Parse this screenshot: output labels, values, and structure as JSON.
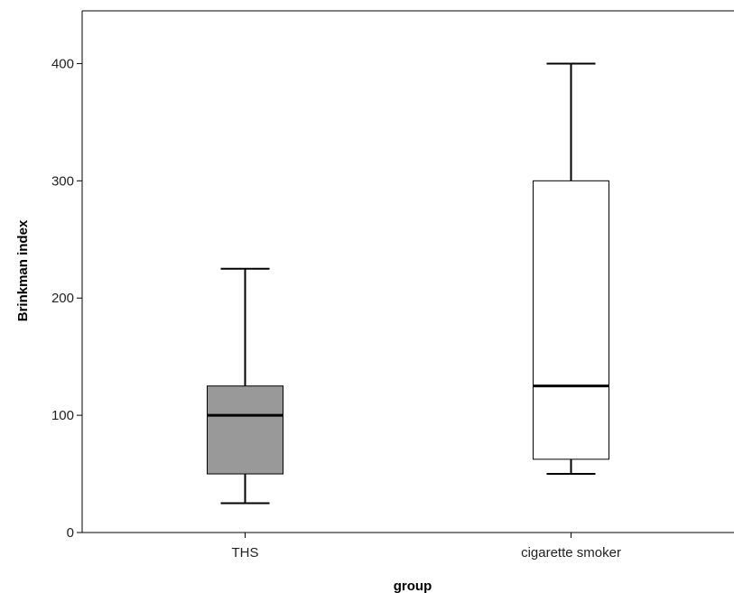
{
  "chart_data": {
    "type": "boxplot",
    "xlabel": "group",
    "ylabel": "Brinkman index",
    "ylim": [
      0,
      445
    ],
    "yticks": [
      0,
      100,
      200,
      300,
      400
    ],
    "grid": false,
    "categories": [
      "THS",
      "cigarette smoker"
    ],
    "boxes": [
      {
        "category": "THS",
        "whisker_low": 25,
        "q1": 50,
        "median": 100,
        "q3": 125,
        "whisker_high": 225,
        "fill": "#999999"
      },
      {
        "category": "cigarette smoker",
        "whisker_low": 50,
        "q1": 62.5,
        "median": 125,
        "q3": 300,
        "whisker_high": 400,
        "fill": "#ffffff"
      }
    ]
  }
}
